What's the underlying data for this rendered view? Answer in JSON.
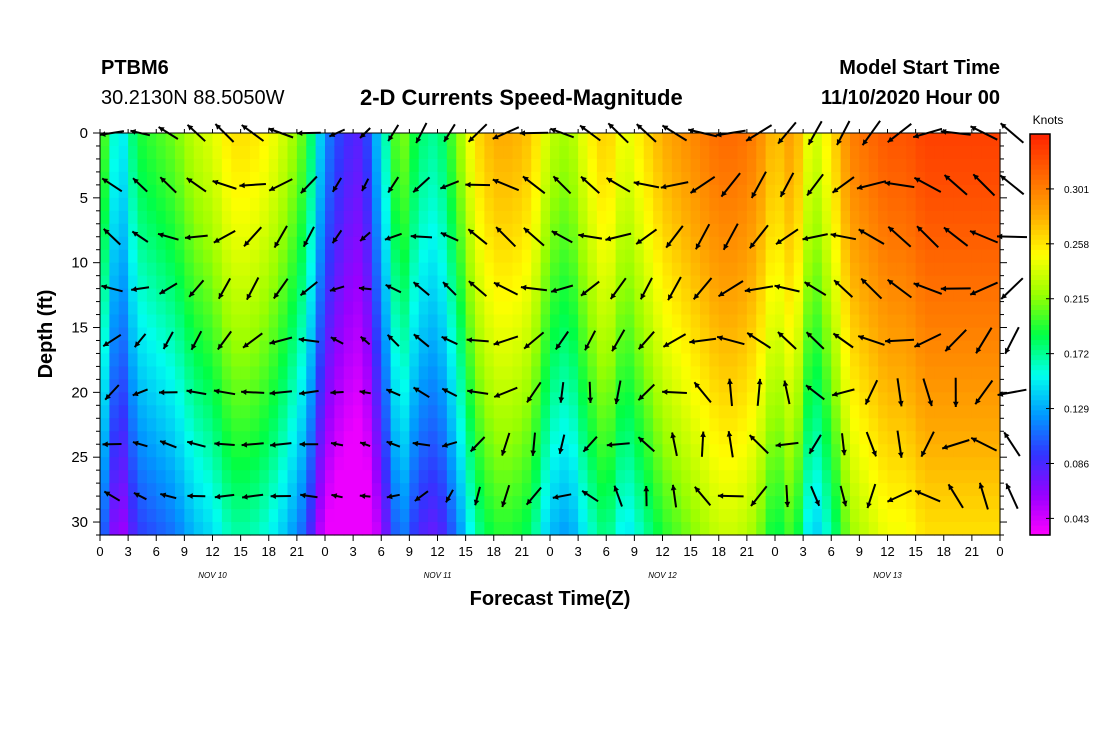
{
  "header": {
    "station": "PTBM6",
    "location": "30.2130N 88.5050W",
    "title": "2-D Currents Speed-Magnitude",
    "model_start_label": "Model Start Time",
    "model_start_value": "11/10/2020 Hour 00"
  },
  "chart_data": {
    "type": "heatmap",
    "title": "2-D Currents Speed-Magnitude",
    "xlabel": "Forecast Time(Z)",
    "ylabel": "Depth (ft)",
    "x_range_hours": [
      0,
      96
    ],
    "y_range_ft": [
      0,
      31
    ],
    "x_tick_labels": [
      "0",
      "3",
      "6",
      "9",
      "12",
      "15",
      "18",
      "21",
      "0",
      "3",
      "6",
      "9",
      "12",
      "15",
      "18",
      "21",
      "0",
      "3",
      "6",
      "9",
      "12",
      "15",
      "18",
      "21",
      "0",
      "3",
      "6",
      "9",
      "12",
      "15",
      "18",
      "21",
      "0"
    ],
    "y_tick_values": [
      0,
      5,
      10,
      15,
      20,
      25,
      30
    ],
    "y_tick_labels": [
      "0",
      "5",
      "10",
      "15",
      "20",
      "25",
      "30"
    ],
    "day_labels": [
      {
        "label": "NOV 10",
        "hour": 12
      },
      {
        "label": "NOV 11",
        "hour": 36
      },
      {
        "label": "NOV 12",
        "hour": 60
      },
      {
        "label": "NOV 13",
        "hour": 84
      }
    ],
    "colorbar": {
      "unit_label": "Knots",
      "range": [
        0.03,
        0.344
      ],
      "tick_values": [
        0.043,
        0.086,
        0.129,
        0.172,
        0.215,
        0.258,
        0.301
      ],
      "tick_labels": [
        "0.043",
        "0.086",
        "0.129",
        "0.172",
        "0.215",
        "0.258",
        "0.301"
      ],
      "colors": [
        "#ff00ff",
        "#9900ff",
        "#3333ff",
        "#0099ff",
        "#00ffee",
        "#00ff44",
        "#99ff00",
        "#ffff00",
        "#ffaa00",
        "#ff6600",
        "#ff2200"
      ]
    },
    "surface_speed_profile": {
      "hours": [
        0,
        2,
        4,
        6,
        8,
        10,
        12,
        14,
        16,
        18,
        20,
        22,
        24,
        26,
        28,
        30,
        32,
        34,
        36,
        38,
        40,
        42,
        44,
        46,
        48,
        50,
        52,
        54,
        56,
        58,
        60,
        62,
        64,
        66,
        68,
        70,
        72,
        74,
        76,
        78,
        80,
        82,
        84,
        86,
        88,
        90,
        92,
        94,
        96
      ],
      "speed_knots": [
        0.22,
        0.14,
        0.19,
        0.2,
        0.21,
        0.23,
        0.24,
        0.26,
        0.26,
        0.25,
        0.23,
        0.2,
        0.12,
        0.09,
        0.08,
        0.15,
        0.22,
        0.18,
        0.17,
        0.21,
        0.26,
        0.28,
        0.28,
        0.27,
        0.23,
        0.22,
        0.25,
        0.27,
        0.24,
        0.26,
        0.28,
        0.29,
        0.3,
        0.31,
        0.31,
        0.3,
        0.27,
        0.29,
        0.23,
        0.26,
        0.3,
        0.31,
        0.32,
        0.32,
        0.33,
        0.33,
        0.33,
        0.33,
        0.33
      ]
    },
    "vector_depths_ft": [
      0,
      4,
      8,
      12,
      16,
      20,
      24,
      28
    ],
    "vector_hours": [
      0,
      3,
      6,
      9,
      12,
      15,
      18,
      21,
      24,
      27,
      30,
      33,
      36,
      39,
      42,
      45,
      48,
      51,
      54,
      57,
      60,
      63,
      66,
      69,
      72,
      75,
      78,
      81,
      84,
      87,
      90,
      93,
      96
    ],
    "grid": false,
    "legend": "right colorbar"
  }
}
